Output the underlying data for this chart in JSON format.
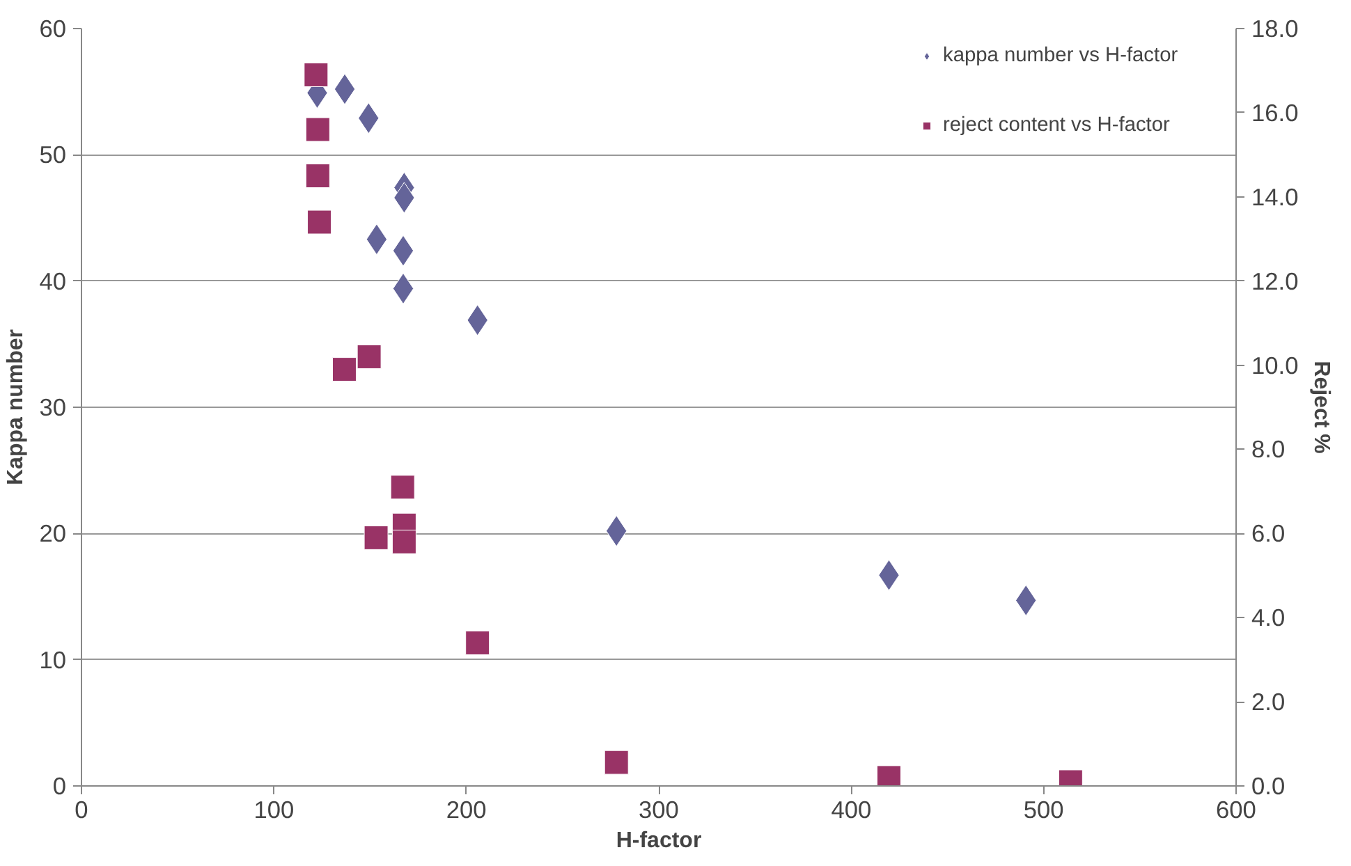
{
  "chart_data": {
    "type": "scatter",
    "xlabel": "H-factor",
    "ylabel": "Kappa number",
    "y2label": "Reject %",
    "xlim": [
      0,
      600
    ],
    "xticks": [
      0,
      100,
      200,
      300,
      400,
      500,
      600
    ],
    "ylim": [
      0,
      60
    ],
    "yticks": [
      0,
      10,
      20,
      30,
      40,
      50,
      60
    ],
    "y2lim": [
      0,
      18
    ],
    "y2ticks": [
      {
        "value": 0,
        "label": "0.0"
      },
      {
        "value": 2,
        "label": "2.0"
      },
      {
        "value": 4,
        "label": "4.0"
      },
      {
        "value": 6,
        "label": "6.0"
      },
      {
        "value": 8,
        "label": "8.0"
      },
      {
        "value": 10,
        "label": "10.0"
      },
      {
        "value": 12,
        "label": "12.0"
      },
      {
        "value": 14,
        "label": "14.0"
      },
      {
        "value": 16,
        "label": "16.0"
      },
      {
        "value": 18,
        "label": "18.0"
      }
    ],
    "grid": "y",
    "legend": "top right",
    "series": [
      {
        "name": "kappa number vs H-factor",
        "color": "#646499",
        "marker": "diamond",
        "x": [
          122.5,
          136.8,
          149.2,
          167.7,
          167.7,
          153.4,
          167.2,
          167.2,
          205.8,
          278,
          419.6,
          490.8
        ],
        "values": [
          54.9,
          55.2,
          52.9,
          47.4,
          46.6,
          43.3,
          42.4,
          39.4,
          36.9,
          20.2,
          16.7,
          14.7
        ]
      },
      {
        "name": "reject content vs H-factor",
        "color": "#993366",
        "marker": "square",
        "axis": "y2",
        "x": [
          121.9,
          122.8,
          122.8,
          123.6,
          149.5,
          136.6,
          166.9,
          167.7,
          153.1,
          167.7,
          205.8,
          278,
          419.6,
          514
        ],
        "values": [
          16.9,
          15.6,
          14.5,
          13.4,
          10.2,
          9.9,
          7.1,
          6.2,
          5.9,
          5.8,
          3.4,
          0.56,
          0.2,
          0.1
        ]
      }
    ]
  }
}
